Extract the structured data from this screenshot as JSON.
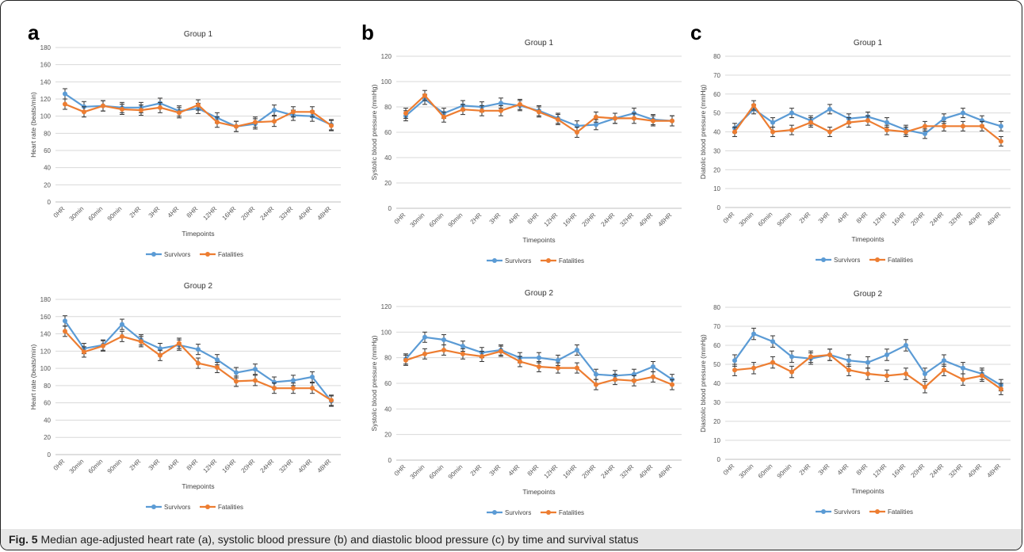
{
  "colors": {
    "survivors": "#5b9bd5",
    "fatalities": "#ed7d31",
    "grid": "#d9d9d9",
    "errbar": "#333333"
  },
  "caption": {
    "prefix": "Fig. 5",
    "text": " Median age-adjusted heart rate (a), systolic blood pressure (b) and diastolic blood pressure (c) by time and survival status"
  },
  "chart_data": [
    {
      "id": "a-group1",
      "panel": "a",
      "type": "line",
      "title": "Group 1",
      "xlabel": "Timepoints",
      "ylabel": "Heart rate (beats/min)",
      "ylim": [
        0,
        180
      ],
      "ytick_step": 20,
      "grid": true,
      "legend": "bottom",
      "categories": [
        "0HR",
        "30min",
        "60min",
        "90min",
        "2HR",
        "3HR",
        "4HR",
        "8HR",
        "12HR",
        "16HR",
        "20HR",
        "24HR",
        "32HR",
        "40HR",
        "48HR"
      ],
      "series": [
        {
          "name": "Survivors",
          "values": [
            126,
            111,
            112,
            110,
            110,
            115,
            106,
            109,
            98,
            88,
            91,
            107,
            101,
            100,
            90
          ],
          "err": 6
        },
        {
          "name": "Fatalities",
          "values": [
            114,
            105,
            112,
            108,
            107,
            110,
            104,
            113,
            93,
            88,
            93,
            94,
            105,
            105,
            89
          ],
          "err": 6
        }
      ]
    },
    {
      "id": "a-group2",
      "panel": "",
      "type": "line",
      "title": "Group 2",
      "xlabel": "Timepoints",
      "ylabel": "Heart rate (beats/min)",
      "ylim": [
        0,
        180
      ],
      "ytick_step": 20,
      "grid": true,
      "legend": "bottom",
      "categories": [
        "0HR",
        "30min",
        "60min",
        "90min",
        "2HR",
        "3HR",
        "4HR",
        "8HR",
        "12HR",
        "16HR",
        "20HR",
        "24HR",
        "32HR",
        "40HR",
        "48HR"
      ],
      "series": [
        {
          "name": "Survivors",
          "values": [
            155,
            123,
            127,
            151,
            133,
            123,
            127,
            122,
            110,
            95,
            99,
            84,
            86,
            90,
            62
          ],
          "err": 6
        },
        {
          "name": "Fatalities",
          "values": [
            143,
            119,
            126,
            137,
            131,
            115,
            129,
            106,
            101,
            85,
            86,
            77,
            77,
            77,
            63
          ],
          "err": 6
        }
      ]
    },
    {
      "id": "b-group1",
      "panel": "b",
      "type": "line",
      "title": "Group 1",
      "xlabel": "Timepoints",
      "ylabel": "Systolic blood pressure (mmHg)",
      "ylim": [
        0,
        120
      ],
      "ytick_step": 20,
      "grid": true,
      "legend": "bottom",
      "categories": [
        "0HR",
        "30min",
        "60min",
        "90min",
        "2HR",
        "3HR",
        "4HR",
        "8HR",
        "12HR",
        "16HR",
        "20HR",
        "24HR",
        "32HR",
        "40HR",
        "48HR"
      ],
      "series": [
        {
          "name": "Survivors",
          "values": [
            73,
            86,
            75,
            81,
            80,
            83,
            81,
            77,
            71,
            65,
            66,
            71,
            75,
            70,
            69
          ],
          "err": 4
        },
        {
          "name": "Fatalities",
          "values": [
            75,
            89,
            72,
            78,
            77,
            77,
            82,
            76,
            70,
            60,
            72,
            71,
            71,
            69,
            69
          ],
          "err": 4
        }
      ]
    },
    {
      "id": "b-group2",
      "panel": "",
      "type": "line",
      "title": "Group 2",
      "xlabel": "Timepoints",
      "ylabel": "Systolic blood pressure (mmHg)",
      "ylim": [
        0,
        120
      ],
      "ytick_step": 20,
      "grid": true,
      "legend": "bottom",
      "categories": [
        "0HR",
        "30min",
        "60min",
        "90min",
        "2HR",
        "3HR",
        "4HR",
        "8HR",
        "12HR",
        "16HR",
        "20HR",
        "24HR",
        "32HR",
        "40HR",
        "48HR"
      ],
      "series": [
        {
          "name": "Survivors",
          "values": [
            79,
            96,
            94,
            89,
            84,
            86,
            80,
            80,
            78,
            86,
            67,
            66,
            67,
            73,
            63
          ],
          "err": 4
        },
        {
          "name": "Fatalities",
          "values": [
            78,
            83,
            86,
            83,
            81,
            85,
            77,
            73,
            72,
            72,
            59,
            63,
            62,
            65,
            59
          ],
          "err": 4
        }
      ]
    },
    {
      "id": "c-group1",
      "panel": "c",
      "type": "line",
      "title": "Group 1",
      "xlabel": "Timepoints",
      "ylabel": "Diatolic blood pressure (mmHg)",
      "ylim": [
        0,
        80
      ],
      "ytick_step": 10,
      "grid": true,
      "legend": "bottom",
      "categories": [
        "0HR",
        "30min",
        "60min",
        "90min",
        "2HR",
        "3HR",
        "4HR",
        "8HR",
        "12HR",
        "16HR",
        "20HR",
        "24HR",
        "32HR",
        "40HR",
        "48HR"
      ],
      "series": [
        {
          "name": "Survivors",
          "values": [
            42,
            52,
            45,
            50,
            46,
            52,
            47,
            48,
            45,
            41,
            39,
            47,
            50,
            46,
            43
          ],
          "err": 2.5
        },
        {
          "name": "Fatalities",
          "values": [
            40,
            54,
            40,
            41,
            45,
            40,
            45,
            46,
            41,
            40,
            43,
            43,
            43,
            43,
            35
          ],
          "err": 2.5
        }
      ]
    },
    {
      "id": "c-group2",
      "panel": "",
      "type": "line",
      "title": "Group 2",
      "xlabel": "Timepoints",
      "ylabel": "Diastolic blood pressure (mmHg)",
      "ylim": [
        0,
        80
      ],
      "ytick_step": 10,
      "grid": true,
      "legend": "bottom",
      "categories": [
        "0HR",
        "30min",
        "60min",
        "90min",
        "2HR",
        "3HR",
        "4HR",
        "8HR",
        "12HR",
        "16HR",
        "20HR",
        "24HR",
        "32HR",
        "40HR",
        "48HR"
      ],
      "series": [
        {
          "name": "Survivors",
          "values": [
            52,
            66,
            62,
            54,
            53,
            55,
            52,
            51,
            55,
            60,
            45,
            52,
            48,
            45,
            39
          ],
          "err": 3
        },
        {
          "name": "Fatalities",
          "values": [
            47,
            48,
            51,
            46,
            54,
            55,
            47,
            45,
            44,
            45,
            38,
            47,
            42,
            44,
            37
          ],
          "err": 3
        }
      ]
    }
  ]
}
